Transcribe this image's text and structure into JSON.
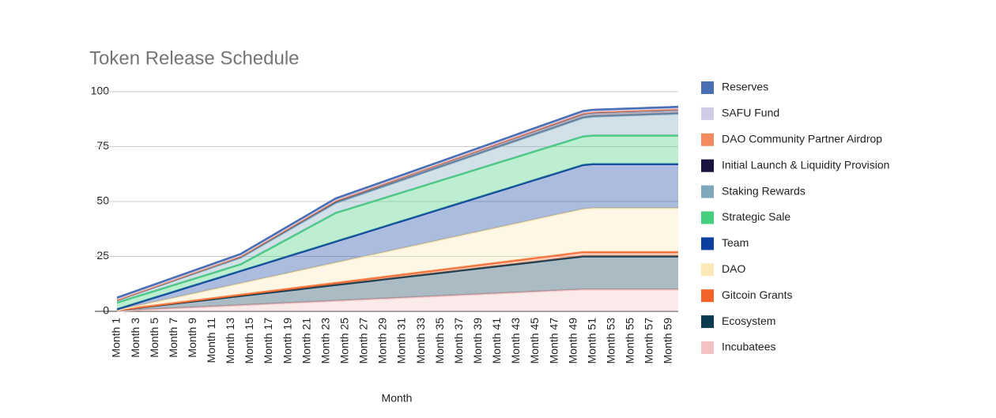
{
  "chart_data": {
    "type": "stacked_area",
    "title": "Token Release Schedule",
    "x_label": "Month",
    "categories": [
      "Month 1",
      null,
      "Month 3",
      null,
      "Month 5",
      null,
      "Month 7",
      null,
      "Month 9",
      null,
      "Month 11",
      null,
      "Month 13",
      null,
      "Month 15",
      null,
      "Month 17",
      null,
      "Month 19",
      null,
      "Month 21",
      null,
      "Month 23",
      null,
      "Month 25",
      null,
      "Month 27",
      null,
      "Month 29",
      null,
      "Month 31",
      null,
      "Month 33",
      null,
      "Month 35",
      null,
      "Month 37",
      null,
      "Month 39",
      null,
      "Month 41",
      null,
      "Month 43",
      null,
      "Month 45",
      null,
      "Month 47",
      null,
      "Month 49",
      null,
      "Month 51",
      null,
      "Month 53",
      null,
      "Month 55",
      null,
      "Month 57",
      null,
      "Month 59",
      null
    ],
    "ylim": [
      0,
      100
    ],
    "yticks": [
      0,
      25,
      50,
      75,
      100
    ],
    "grid": true,
    "legend": "right",
    "series": [
      {
        "name": "Incubatees",
        "color": "#f4c2c2",
        "values": [
          0.2,
          0.4,
          0.6,
          0.8,
          1,
          1.2,
          1.4,
          1.6,
          1.8,
          2,
          2.2,
          2.4,
          2.6,
          2.8,
          3,
          3.2,
          3.4,
          3.6,
          3.8,
          4,
          4.2,
          4.4,
          4.6,
          4.8,
          5,
          5.2,
          5.4,
          5.6,
          5.8,
          6,
          6.2,
          6.4,
          6.6,
          6.8,
          7,
          7.2,
          7.4,
          7.6,
          7.8,
          8,
          8.2,
          8.4,
          8.6,
          8.8,
          9,
          9.2,
          9.4,
          9.6,
          9.8,
          10,
          10,
          10,
          10,
          10,
          10,
          10,
          10,
          10,
          10,
          10
        ]
      },
      {
        "name": "Ecosystem",
        "color": "#0b3b52",
        "values": [
          0.3,
          0.6,
          0.9,
          1.2,
          1.5,
          1.8,
          2.1,
          2.4,
          2.7,
          3,
          3.3,
          3.6,
          3.9,
          4.2,
          4.5,
          4.8,
          5.1,
          5.4,
          5.7,
          6,
          6.3,
          6.6,
          6.9,
          7.2,
          7.5,
          7.8,
          8.1,
          8.4,
          8.7,
          9,
          9.3,
          9.6,
          9.9,
          10.2,
          10.5,
          10.8,
          11.1,
          11.4,
          11.7,
          12,
          12.3,
          12.6,
          12.9,
          13.2,
          13.5,
          13.8,
          14.1,
          14.4,
          14.7,
          15,
          15,
          15,
          15,
          15,
          15,
          15,
          15,
          15,
          15,
          15
        ]
      },
      {
        "name": "Gitcoin Grants",
        "color": "#f4632a",
        "values": [
          0.04,
          0.08,
          0.12,
          0.16,
          0.2,
          0.24,
          0.28,
          0.32,
          0.36,
          0.4,
          0.44,
          0.48,
          0.52,
          0.56,
          0.6,
          0.64,
          0.68,
          0.72,
          0.76,
          0.8,
          0.84,
          0.88,
          0.92,
          0.96,
          1,
          1.04,
          1.08,
          1.12,
          1.16,
          1.2,
          1.24,
          1.28,
          1.32,
          1.36,
          1.4,
          1.44,
          1.48,
          1.52,
          1.56,
          1.6,
          1.64,
          1.68,
          1.72,
          1.76,
          1.8,
          1.84,
          1.88,
          1.92,
          1.96,
          2,
          2,
          2,
          2,
          2,
          2,
          2,
          2,
          2,
          2,
          2
        ]
      },
      {
        "name": "DAO",
        "color": "#fde9b8",
        "values": [
          0,
          0.4,
          0.8,
          1.2,
          1.6,
          2,
          2.4,
          2.8,
          3.2,
          3.6,
          4,
          4.4,
          4.8,
          5.2,
          5.6,
          6,
          6.4,
          6.8,
          7.2,
          7.6,
          8,
          8.4,
          8.8,
          9.2,
          9.6,
          10,
          10.4,
          10.8,
          11.2,
          11.6,
          12,
          12.4,
          12.8,
          13.2,
          13.6,
          14,
          14.4,
          14.8,
          15.2,
          15.6,
          16,
          16.4,
          16.8,
          17.2,
          17.6,
          18,
          18.4,
          18.8,
          19.2,
          19.6,
          20,
          20,
          20,
          20,
          20,
          20,
          20,
          20,
          20,
          20
        ]
      },
      {
        "name": "Team",
        "color": "#0d3fa0",
        "values": [
          0.4,
          0.8,
          1.2,
          1.6,
          2,
          2.4,
          2.8,
          3.2,
          3.6,
          4,
          4.4,
          4.8,
          5.2,
          5.6,
          6,
          6.4,
          6.8,
          7.2,
          7.6,
          8,
          8.4,
          8.8,
          9.2,
          9.6,
          10,
          10.4,
          10.8,
          11.2,
          11.6,
          12,
          12.4,
          12.8,
          13.2,
          13.6,
          14,
          14.4,
          14.8,
          15.2,
          15.6,
          16,
          16.4,
          16.8,
          17.2,
          17.6,
          18,
          18.4,
          18.8,
          19.2,
          19.6,
          20,
          20,
          20,
          20,
          20,
          20,
          20,
          20,
          20,
          20,
          20
        ]
      },
      {
        "name": "Strategic Sale",
        "color": "#45cf7d",
        "values": [
          3,
          3,
          3,
          3,
          3,
          3,
          3,
          3,
          3,
          3,
          3,
          3,
          3,
          3,
          4,
          5,
          6,
          7,
          8,
          9,
          10,
          11,
          12,
          13,
          13,
          13,
          13,
          13,
          13,
          13,
          13,
          13,
          13,
          13,
          13,
          13,
          13,
          13,
          13,
          13,
          13,
          13,
          13,
          13,
          13,
          13,
          13,
          13,
          13,
          13,
          13,
          13,
          13,
          13,
          13,
          13,
          13,
          13,
          13,
          13
        ]
      },
      {
        "name": "Staking Rewards",
        "color": "#7ea6bd",
        "values": [
          1.15,
          1.3,
          1.45,
          1.6,
          1.75,
          1.9,
          2.05,
          2.2,
          2.35,
          2.5,
          2.65,
          2.8,
          2.95,
          3.1,
          3.25,
          3.4,
          3.55,
          3.7,
          3.85,
          4,
          4.15,
          4.3,
          4.45,
          4.6,
          4.75,
          4.9,
          5.05,
          5.2,
          5.35,
          5.5,
          5.65,
          5.8,
          5.95,
          6.1,
          6.25,
          6.4,
          6.55,
          6.7,
          6.85,
          7,
          7.15,
          7.3,
          7.45,
          7.6,
          7.75,
          7.9,
          8.05,
          8.2,
          8.35,
          8.5,
          8.65,
          8.8,
          8.95,
          9.1,
          9.25,
          9.4,
          9.55,
          9.7,
          9.85,
          10
        ]
      },
      {
        "name": "Initial Launch & Liquidity Provision",
        "color": "#1a1240",
        "values": [
          0.04,
          0.08,
          0.12,
          0.16,
          0.2,
          0.24,
          0.28,
          0.32,
          0.36,
          0.4,
          0.44,
          0.48,
          0.52,
          0.56,
          0.6,
          0.64,
          0.68,
          0.72,
          0.76,
          0.8,
          0.84,
          0.88,
          0.92,
          0.96,
          1,
          1.04,
          1.08,
          1.12,
          1.16,
          1.2,
          1.24,
          1.28,
          1.32,
          1.36,
          1.4,
          1.44,
          1.48,
          1.52,
          1.56,
          1.6,
          1.64,
          1.68,
          1.72,
          1.76,
          1.8,
          1.84,
          1.88,
          1.92,
          1.96,
          2,
          2,
          2,
          2,
          2,
          2,
          2,
          2,
          2,
          2,
          2
        ]
      },
      {
        "name": "DAO Community Partner Airdrop",
        "color": "#f58a5e",
        "values": [
          0.1,
          0.1,
          0.1,
          0.1,
          0.1,
          0.1,
          0.1,
          0.1,
          0.1,
          0.1,
          0.1,
          0.1,
          0.1,
          0.1,
          0.1,
          0.1,
          0.1,
          0.1,
          0.1,
          0.1,
          0.1,
          0.1,
          0.1,
          0.1,
          0.1,
          0.1,
          0.1,
          0.1,
          0.1,
          0.1,
          0.1,
          0.1,
          0.1,
          0.1,
          0.1,
          0.1,
          0.1,
          0.1,
          0.1,
          0.1,
          0.1,
          0.1,
          0.1,
          0.1,
          0.1,
          0.1,
          0.1,
          0.1,
          0.1,
          0.1,
          0.1,
          0.1,
          0.1,
          0.1,
          0.1,
          0.1,
          0.1,
          0.1,
          0.1,
          0.1
        ]
      },
      {
        "name": "SAFU Fund",
        "color": "#cfcde6",
        "values": [
          0.5,
          0.5,
          0.5,
          0.5,
          0.5,
          0.5,
          0.5,
          0.5,
          0.5,
          0.5,
          0.5,
          0.5,
          0.5,
          0.5,
          0.5,
          0.5,
          0.5,
          0.5,
          0.5,
          0.5,
          0.5,
          0.5,
          0.5,
          0.5,
          0.5,
          0.5,
          0.5,
          0.5,
          0.5,
          0.5,
          0.5,
          0.5,
          0.5,
          0.5,
          0.5,
          0.5,
          0.5,
          0.5,
          0.5,
          0.5,
          0.5,
          0.5,
          0.5,
          0.5,
          0.5,
          0.5,
          0.5,
          0.5,
          0.5,
          0.5,
          0.5,
          0.5,
          0.5,
          0.5,
          0.5,
          0.5,
          0.5,
          0.5,
          0.5,
          0.5
        ]
      },
      {
        "name": "Reserves",
        "color": "#4a6fb5",
        "values": [
          0.5,
          0.5,
          0.5,
          0.5,
          0.5,
          0.5,
          0.5,
          0.5,
          0.5,
          0.5,
          0.5,
          0.5,
          0.5,
          0.5,
          0.5,
          0.5,
          0.5,
          0.5,
          0.5,
          0.5,
          0.5,
          0.5,
          0.5,
          0.5,
          0.5,
          0.5,
          0.5,
          0.5,
          0.5,
          0.5,
          0.5,
          0.5,
          0.5,
          0.5,
          0.5,
          0.5,
          0.5,
          0.5,
          0.5,
          0.5,
          0.5,
          0.5,
          0.5,
          0.5,
          0.5,
          0.5,
          0.5,
          0.5,
          0.5,
          0.5,
          0.5,
          0.5,
          0.5,
          0.5,
          0.5,
          0.5,
          0.5,
          0.5,
          0.5,
          0.5
        ]
      }
    ]
  }
}
